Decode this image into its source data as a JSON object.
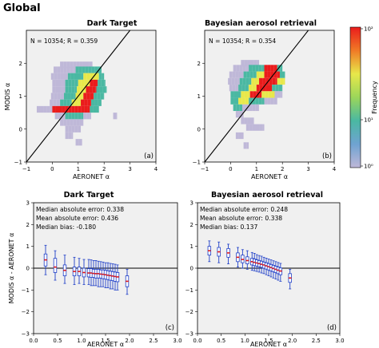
{
  "figure": {
    "title": "Global"
  },
  "chart_data": [
    {
      "id": "a",
      "type": "heatmap",
      "title": "Dark Target",
      "panel_label": "(a)",
      "xlabel": "AERONET α",
      "ylabel": "MODIS α",
      "xlim": [
        -1,
        4
      ],
      "ylim": [
        -1,
        3
      ],
      "xticks": [
        "−1",
        "0",
        "1",
        "2",
        "3",
        "4"
      ],
      "yticks": [
        "−1",
        "0",
        "1",
        "2"
      ],
      "annotation": "N = 10354; R = 0.359",
      "reference_line": "1:1",
      "bin_width": 0.125,
      "colors": {
        "low": "#bfb8d8",
        "mid": "#4ab8a2",
        "high": "#e8e84a",
        "peak": "#ea1c1c"
      },
      "rows": [
        {
          "y": 1.95,
          "x0": 0.3,
          "x1": 1.55,
          "level": "low"
        },
        {
          "y": 1.8,
          "x0": 0.05,
          "x1": 0.9,
          "level": "low"
        },
        {
          "y": 1.8,
          "x0": 0.9,
          "x1": 1.9,
          "level": "mid"
        },
        {
          "y": 1.6,
          "x0": -0.05,
          "x1": 0.6,
          "level": "low"
        },
        {
          "y": 1.6,
          "x0": 0.6,
          "x1": 1.2,
          "level": "mid"
        },
        {
          "y": 1.6,
          "x0": 1.2,
          "x1": 1.8,
          "level": "high"
        },
        {
          "y": 1.6,
          "x0": 1.8,
          "x1": 2.0,
          "level": "mid"
        },
        {
          "y": 1.4,
          "x0": 0.0,
          "x1": 0.5,
          "level": "low"
        },
        {
          "y": 1.4,
          "x0": 0.5,
          "x1": 1.0,
          "level": "mid"
        },
        {
          "y": 1.4,
          "x0": 1.0,
          "x1": 1.45,
          "level": "high"
        },
        {
          "y": 1.4,
          "x0": 1.45,
          "x1": 1.75,
          "level": "peak"
        },
        {
          "y": 1.4,
          "x0": 1.75,
          "x1": 2.05,
          "level": "mid"
        },
        {
          "y": 1.2,
          "x0": 0.0,
          "x1": 0.5,
          "level": "low"
        },
        {
          "y": 1.2,
          "x0": 0.5,
          "x1": 0.95,
          "level": "mid"
        },
        {
          "y": 1.2,
          "x0": 0.95,
          "x1": 1.3,
          "level": "high"
        },
        {
          "y": 1.2,
          "x0": 1.3,
          "x1": 1.7,
          "level": "peak"
        },
        {
          "y": 1.2,
          "x0": 1.7,
          "x1": 2.1,
          "level": "mid"
        },
        {
          "y": 1.0,
          "x0": -0.05,
          "x1": 0.45,
          "level": "low"
        },
        {
          "y": 1.0,
          "x0": 0.45,
          "x1": 0.9,
          "level": "mid"
        },
        {
          "y": 1.0,
          "x0": 0.9,
          "x1": 1.2,
          "level": "high"
        },
        {
          "y": 1.0,
          "x0": 1.2,
          "x1": 1.6,
          "level": "peak"
        },
        {
          "y": 1.0,
          "x0": 1.6,
          "x1": 2.0,
          "level": "mid"
        },
        {
          "y": 0.8,
          "x0": -0.1,
          "x1": 0.3,
          "level": "low"
        },
        {
          "y": 0.8,
          "x0": 0.3,
          "x1": 0.75,
          "level": "mid"
        },
        {
          "y": 0.8,
          "x0": 0.75,
          "x1": 1.1,
          "level": "high"
        },
        {
          "y": 0.8,
          "x0": 1.1,
          "x1": 1.5,
          "level": "peak"
        },
        {
          "y": 0.8,
          "x0": 1.5,
          "x1": 1.9,
          "level": "mid"
        },
        {
          "y": 0.6,
          "x0": -0.6,
          "x1": 0.0,
          "level": "low"
        },
        {
          "y": 0.6,
          "x0": 0.0,
          "x1": 1.45,
          "level": "peak"
        },
        {
          "y": 0.6,
          "x0": 1.45,
          "x1": 1.8,
          "level": "mid"
        },
        {
          "y": 0.4,
          "x0": 0.1,
          "x1": 0.5,
          "level": "low"
        },
        {
          "y": 0.4,
          "x0": 0.5,
          "x1": 1.2,
          "level": "mid"
        },
        {
          "y": 0.4,
          "x0": 1.2,
          "x1": 1.5,
          "level": "low"
        },
        {
          "y": 0.2,
          "x0": 0.3,
          "x1": 1.2,
          "level": "low"
        },
        {
          "y": 0.0,
          "x0": 0.5,
          "x1": 1.1,
          "level": "low"
        },
        {
          "y": -0.2,
          "x0": 0.5,
          "x1": 0.8,
          "level": "low"
        },
        {
          "y": -0.4,
          "x0": 0.9,
          "x1": 1.15,
          "level": "low"
        },
        {
          "y": 0.4,
          "x0": 2.35,
          "x1": 2.5,
          "level": "low"
        }
      ]
    },
    {
      "id": "b",
      "type": "heatmap",
      "title": "Bayesian aerosol retrieval",
      "panel_label": "(b)",
      "xlabel": "AERONET α",
      "ylabel": "",
      "xlim": [
        -1,
        4
      ],
      "ylim": [
        -1,
        3
      ],
      "xticks": [
        "−1",
        "0",
        "1",
        "2",
        "3",
        "4"
      ],
      "yticks": [
        "−1",
        "0",
        "1",
        "2"
      ],
      "annotation": "N = 10354; R = 0.354",
      "reference_line": "1:1",
      "bin_width": 0.125,
      "colors": {
        "low": "#bfb8d8",
        "mid": "#4ab8a2",
        "high": "#e8e84a",
        "peak": "#ea1c1c"
      },
      "rows": [
        {
          "y": 2.0,
          "x0": 0.4,
          "x1": 1.1,
          "level": "low"
        },
        {
          "y": 1.85,
          "x0": 0.1,
          "x1": 0.7,
          "level": "low"
        },
        {
          "y": 1.85,
          "x0": 0.7,
          "x1": 1.3,
          "level": "mid"
        },
        {
          "y": 1.85,
          "x0": 1.3,
          "x1": 1.8,
          "level": "peak"
        },
        {
          "y": 1.85,
          "x0": 1.8,
          "x1": 2.0,
          "level": "mid"
        },
        {
          "y": 1.65,
          "x0": -0.05,
          "x1": 0.5,
          "level": "low"
        },
        {
          "y": 1.65,
          "x0": 0.5,
          "x1": 1.0,
          "level": "mid"
        },
        {
          "y": 1.65,
          "x0": 1.0,
          "x1": 1.3,
          "level": "high"
        },
        {
          "y": 1.65,
          "x0": 1.3,
          "x1": 1.9,
          "level": "peak"
        },
        {
          "y": 1.65,
          "x0": 1.9,
          "x1": 2.1,
          "level": "mid"
        },
        {
          "y": 1.45,
          "x0": -0.1,
          "x1": 0.35,
          "level": "low"
        },
        {
          "y": 1.45,
          "x0": 0.35,
          "x1": 0.8,
          "level": "mid"
        },
        {
          "y": 1.45,
          "x0": 0.8,
          "x1": 1.1,
          "level": "high"
        },
        {
          "y": 1.45,
          "x0": 1.1,
          "x1": 1.8,
          "level": "peak"
        },
        {
          "y": 1.45,
          "x0": 1.8,
          "x1": 2.1,
          "level": "high"
        },
        {
          "y": 1.25,
          "x0": -0.05,
          "x1": 0.3,
          "level": "low"
        },
        {
          "y": 1.25,
          "x0": 0.3,
          "x1": 0.7,
          "level": "mid"
        },
        {
          "y": 1.25,
          "x0": 0.7,
          "x1": 1.0,
          "level": "high"
        },
        {
          "y": 1.25,
          "x0": 1.0,
          "x1": 1.6,
          "level": "peak"
        },
        {
          "y": 1.25,
          "x0": 1.6,
          "x1": 2.0,
          "level": "mid"
        },
        {
          "y": 1.05,
          "x0": 0.0,
          "x1": 0.4,
          "level": "mid"
        },
        {
          "y": 1.05,
          "x0": 0.4,
          "x1": 0.75,
          "level": "high"
        },
        {
          "y": 1.05,
          "x0": 0.75,
          "x1": 1.2,
          "level": "peak"
        },
        {
          "y": 1.05,
          "x0": 1.2,
          "x1": 1.7,
          "level": "high"
        },
        {
          "y": 1.05,
          "x0": 1.7,
          "x1": 2.0,
          "level": "low"
        },
        {
          "y": 0.85,
          "x0": 0.0,
          "x1": 0.3,
          "level": "mid"
        },
        {
          "y": 0.85,
          "x0": 0.3,
          "x1": 0.7,
          "level": "high"
        },
        {
          "y": 0.85,
          "x0": 0.7,
          "x1": 1.3,
          "level": "mid"
        },
        {
          "y": 0.85,
          "x0": 1.3,
          "x1": 1.8,
          "level": "low"
        },
        {
          "y": 0.65,
          "x0": 0.1,
          "x1": 0.45,
          "level": "mid"
        },
        {
          "y": 0.65,
          "x0": 0.45,
          "x1": 1.1,
          "level": "low"
        },
        {
          "y": 0.45,
          "x0": 0.2,
          "x1": 0.5,
          "level": "low"
        },
        {
          "y": 0.25,
          "x0": 0.4,
          "x1": 0.9,
          "level": "low"
        },
        {
          "y": 0.05,
          "x0": 0.6,
          "x1": 1.3,
          "level": "low"
        },
        {
          "y": -0.2,
          "x0": 0.2,
          "x1": 0.5,
          "level": "low"
        },
        {
          "y": -0.5,
          "x0": 0.5,
          "x1": 0.7,
          "level": "low"
        }
      ]
    },
    {
      "id": "c",
      "type": "box",
      "title": "Dark Target",
      "panel_label": "(c)",
      "xlabel": "AERONET α",
      "ylabel": "MODIS α - AERONET α",
      "xlim": [
        0.0,
        3.0
      ],
      "ylim": [
        -3,
        3
      ],
      "xticks": [
        "0.0",
        "0.5",
        "1.0",
        "1.5",
        "2.0",
        "2.5",
        "3.0"
      ],
      "yticks": [
        "−3",
        "−2",
        "−1",
        "0",
        "1",
        "2",
        "3"
      ],
      "stats": [
        "Median absolute error: 0.338",
        "Mean absolute error: 0.436",
        "Median bias: -0.180"
      ],
      "boxes": [
        {
          "x": 0.25,
          "wl": -0.3,
          "q1": 0.1,
          "med": 0.38,
          "q3": 0.65,
          "wh": 1.05
        },
        {
          "x": 0.45,
          "wl": -0.55,
          "q1": -0.2,
          "med": 0.05,
          "q3": 0.45,
          "wh": 0.8
        },
        {
          "x": 0.65,
          "wl": -0.7,
          "q1": -0.35,
          "med": -0.1,
          "q3": 0.15,
          "wh": 0.6
        },
        {
          "x": 0.85,
          "wl": -0.75,
          "q1": -0.35,
          "med": -0.15,
          "q3": 0.05,
          "wh": 0.5
        },
        {
          "x": 0.95,
          "wl": -0.7,
          "q1": -0.35,
          "med": -0.15,
          "q3": 0.05,
          "wh": 0.45
        },
        {
          "x": 1.05,
          "wl": -0.75,
          "q1": -0.4,
          "med": -0.2,
          "q3": 0.0,
          "wh": 0.4
        },
        {
          "x": 1.15,
          "wl": -0.75,
          "q1": -0.4,
          "med": -0.22,
          "q3": -0.02,
          "wh": 0.4
        },
        {
          "x": 1.2,
          "wl": -0.8,
          "q1": -0.42,
          "med": -0.22,
          "q3": -0.02,
          "wh": 0.38
        },
        {
          "x": 1.25,
          "wl": -0.8,
          "q1": -0.42,
          "med": -0.24,
          "q3": -0.05,
          "wh": 0.35
        },
        {
          "x": 1.3,
          "wl": -0.8,
          "q1": -0.45,
          "med": -0.25,
          "q3": -0.05,
          "wh": 0.35
        },
        {
          "x": 1.35,
          "wl": -0.85,
          "q1": -0.45,
          "med": -0.25,
          "q3": -0.05,
          "wh": 0.32
        },
        {
          "x": 1.4,
          "wl": -0.85,
          "q1": -0.45,
          "med": -0.27,
          "q3": -0.08,
          "wh": 0.3
        },
        {
          "x": 1.45,
          "wl": -0.85,
          "q1": -0.48,
          "med": -0.28,
          "q3": -0.08,
          "wh": 0.28
        },
        {
          "x": 1.5,
          "wl": -0.9,
          "q1": -0.5,
          "med": -0.3,
          "q3": -0.1,
          "wh": 0.25
        },
        {
          "x": 1.55,
          "wl": -0.9,
          "q1": -0.52,
          "med": -0.32,
          "q3": -0.12,
          "wh": 0.25
        },
        {
          "x": 1.6,
          "wl": -0.95,
          "q1": -0.55,
          "med": -0.34,
          "q3": -0.14,
          "wh": 0.22
        },
        {
          "x": 1.65,
          "wl": -0.95,
          "q1": -0.57,
          "med": -0.36,
          "q3": -0.16,
          "wh": 0.2
        },
        {
          "x": 1.7,
          "wl": -1.0,
          "q1": -0.6,
          "med": -0.38,
          "q3": -0.18,
          "wh": 0.18
        },
        {
          "x": 1.75,
          "wl": -1.0,
          "q1": -0.62,
          "med": -0.4,
          "q3": -0.2,
          "wh": 0.15
        },
        {
          "x": 1.95,
          "wl": -1.2,
          "q1": -0.85,
          "med": -0.6,
          "q3": -0.35,
          "wh": -0.05
        }
      ]
    },
    {
      "id": "d",
      "type": "box",
      "title": "Bayesian aerosol retrieval",
      "panel_label": "(d)",
      "xlabel": "AERONET α",
      "ylabel": "",
      "xlim": [
        0.0,
        3.0
      ],
      "ylim": [
        -3,
        3
      ],
      "xticks": [
        "0.0",
        "0.5",
        "1.0",
        "1.5",
        "2.0",
        "2.5",
        "3.0"
      ],
      "yticks": [
        "−3",
        "−2",
        "−1",
        "0",
        "1",
        "2",
        "3"
      ],
      "stats": [
        "Median absolute error: 0.248",
        "Mean absolute error: 0.338",
        "Median bias: 0.137"
      ],
      "boxes": [
        {
          "x": 0.25,
          "wl": 0.3,
          "q1": 0.6,
          "med": 0.8,
          "q3": 1.0,
          "wh": 1.25
        },
        {
          "x": 0.45,
          "wl": 0.25,
          "q1": 0.55,
          "med": 0.75,
          "q3": 0.95,
          "wh": 1.2
        },
        {
          "x": 0.65,
          "wl": 0.2,
          "q1": 0.5,
          "med": 0.7,
          "q3": 0.9,
          "wh": 1.1
        },
        {
          "x": 0.85,
          "wl": 0.05,
          "q1": 0.3,
          "med": 0.5,
          "q3": 0.7,
          "wh": 0.95
        },
        {
          "x": 0.95,
          "wl": 0.0,
          "q1": 0.25,
          "med": 0.4,
          "q3": 0.6,
          "wh": 0.85
        },
        {
          "x": 1.05,
          "wl": -0.05,
          "q1": 0.2,
          "med": 0.35,
          "q3": 0.52,
          "wh": 0.8
        },
        {
          "x": 1.15,
          "wl": -0.1,
          "q1": 0.15,
          "med": 0.3,
          "q3": 0.45,
          "wh": 0.72
        },
        {
          "x": 1.2,
          "wl": -0.12,
          "q1": 0.12,
          "med": 0.27,
          "q3": 0.42,
          "wh": 0.68
        },
        {
          "x": 1.25,
          "wl": -0.15,
          "q1": 0.1,
          "med": 0.24,
          "q3": 0.38,
          "wh": 0.62
        },
        {
          "x": 1.3,
          "wl": -0.18,
          "q1": 0.07,
          "med": 0.21,
          "q3": 0.35,
          "wh": 0.58
        },
        {
          "x": 1.35,
          "wl": -0.22,
          "q1": 0.04,
          "med": 0.18,
          "q3": 0.32,
          "wh": 0.55
        },
        {
          "x": 1.4,
          "wl": -0.25,
          "q1": 0.0,
          "med": 0.15,
          "q3": 0.28,
          "wh": 0.5
        },
        {
          "x": 1.45,
          "wl": -0.3,
          "q1": -0.04,
          "med": 0.11,
          "q3": 0.25,
          "wh": 0.46
        },
        {
          "x": 1.5,
          "wl": -0.35,
          "q1": -0.08,
          "med": 0.07,
          "q3": 0.21,
          "wh": 0.42
        },
        {
          "x": 1.55,
          "wl": -0.4,
          "q1": -0.12,
          "med": 0.03,
          "q3": 0.17,
          "wh": 0.38
        },
        {
          "x": 1.6,
          "wl": -0.45,
          "q1": -0.16,
          "med": -0.01,
          "q3": 0.13,
          "wh": 0.34
        },
        {
          "x": 1.65,
          "wl": -0.5,
          "q1": -0.2,
          "med": -0.05,
          "q3": 0.09,
          "wh": 0.3
        },
        {
          "x": 1.7,
          "wl": -0.55,
          "q1": -0.25,
          "med": -0.09,
          "q3": 0.05,
          "wh": 0.26
        },
        {
          "x": 1.75,
          "wl": -0.6,
          "q1": -0.3,
          "med": -0.13,
          "q3": 0.01,
          "wh": 0.22
        },
        {
          "x": 1.95,
          "wl": -0.95,
          "q1": -0.65,
          "med": -0.45,
          "q3": -0.25,
          "wh": -0.05
        }
      ]
    }
  ],
  "colorbar": {
    "label": "Frequency",
    "ticks": [
      "10²",
      "10¹",
      "10⁰"
    ],
    "stops": [
      "#ea1c1c",
      "#f07a26",
      "#e8e84a",
      "#9bd65a",
      "#4ab8a2",
      "#6fa3d1",
      "#bfb8d8"
    ]
  }
}
